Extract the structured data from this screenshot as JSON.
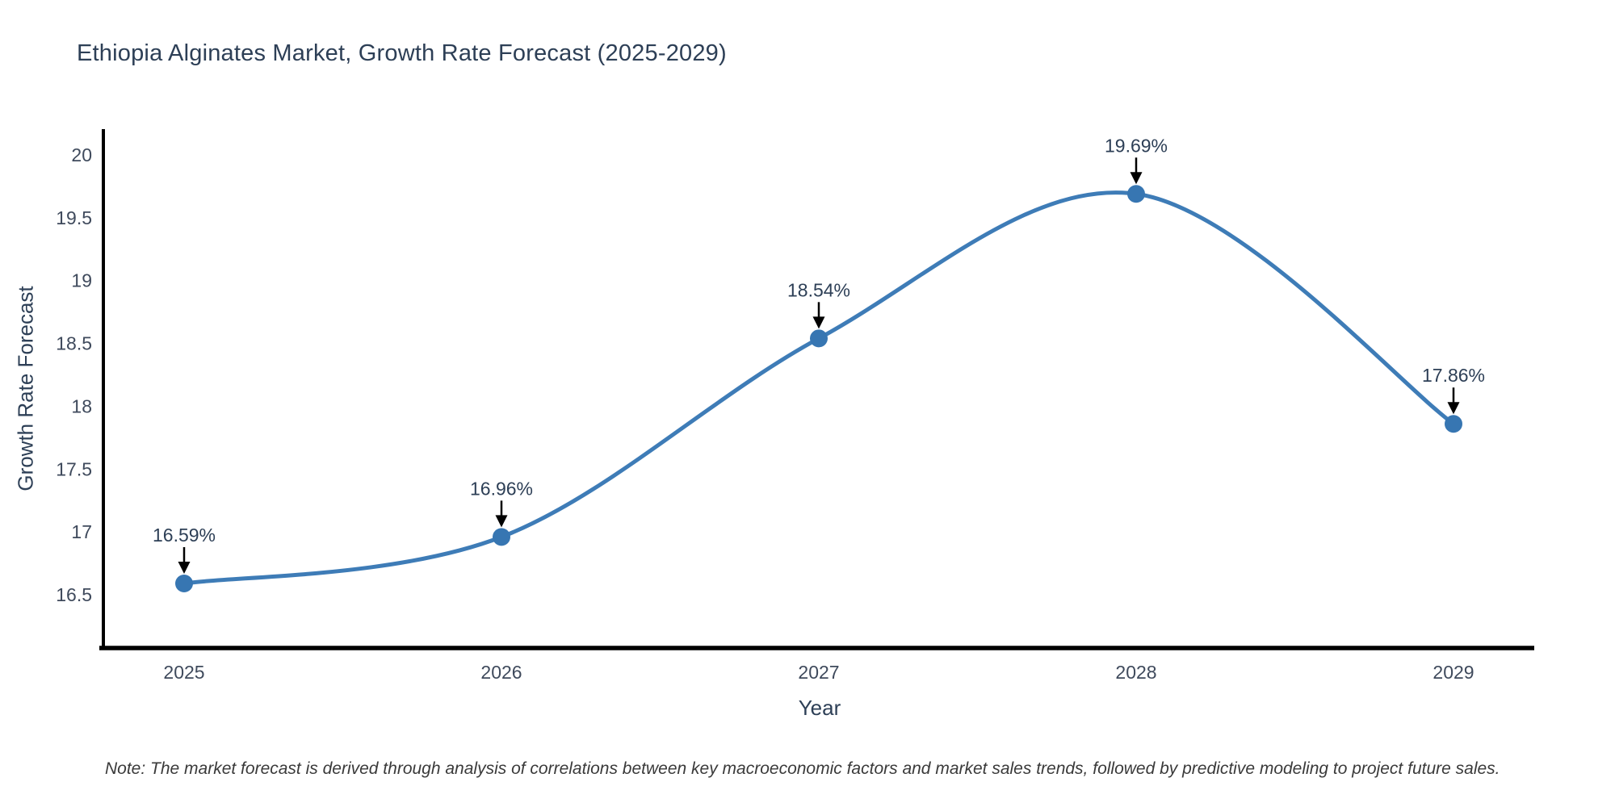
{
  "chart_data": {
    "type": "line",
    "title": "Ethiopia Alginates Market, Growth Rate Forecast (2025-2029)",
    "xlabel": "Year",
    "ylabel": "Growth Rate Forecast",
    "x": [
      2025,
      2026,
      2027,
      2028,
      2029
    ],
    "series": [
      {
        "name": "Growth Rate Forecast",
        "values": [
          16.59,
          16.96,
          18.54,
          19.69,
          17.86
        ]
      }
    ],
    "point_labels": [
      "16.59%",
      "16.96%",
      "18.54%",
      "19.69%",
      "17.86%"
    ],
    "xtick_labels": [
      "2025",
      "2026",
      "2027",
      "2028",
      "2029"
    ],
    "ytick_values": [
      16.5,
      17,
      17.5,
      18,
      18.5,
      19,
      19.5,
      20
    ],
    "ytick_labels": [
      "16.5",
      "17",
      "17.5",
      "18",
      "18.5",
      "19",
      "19.5",
      "20"
    ],
    "ylim": [
      16.08,
      20.21
    ],
    "xlim_padding_years": 0.25,
    "grid": false,
    "legend": "none",
    "curve": "spline",
    "line_color": "#3e7cb7",
    "marker_color": "#3776b2",
    "axis_color": "#000000",
    "annotation_arrow_color": "#000000",
    "text_color": "#2d3f56",
    "note": "Note: The market forecast is derived through analysis of correlations between key macroeconomic factors and market sales trends, followed by predictive modeling to project future sales."
  }
}
